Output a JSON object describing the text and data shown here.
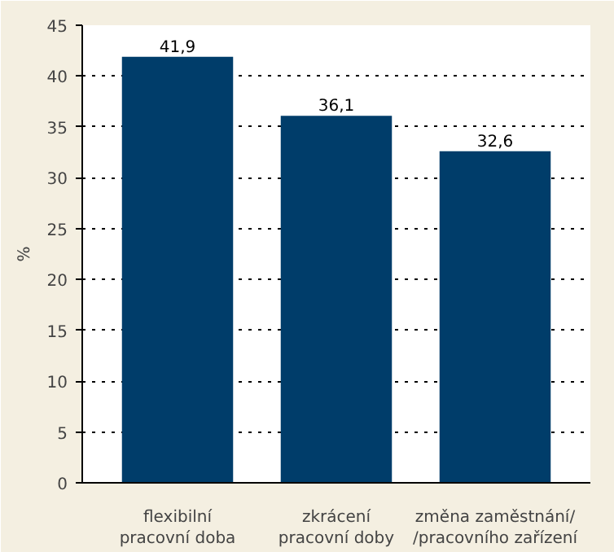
{
  "chart_data": {
    "type": "bar",
    "ylabel": "%",
    "categories": [
      "flexibilní\npracovní doba",
      "zkrácení\npracovní doby",
      "změna zaměstnání/\n/pracovního zařízení"
    ],
    "values": [
      41.9,
      36.1,
      32.6
    ],
    "value_labels": [
      "41,9",
      "36,1",
      "32,6"
    ],
    "color": "#003d6a",
    "ylim": [
      0,
      45
    ],
    "yticks": [
      0,
      5,
      10,
      15,
      20,
      25,
      30,
      35,
      40,
      45
    ],
    "grid": "y",
    "line_style": "dotted"
  }
}
